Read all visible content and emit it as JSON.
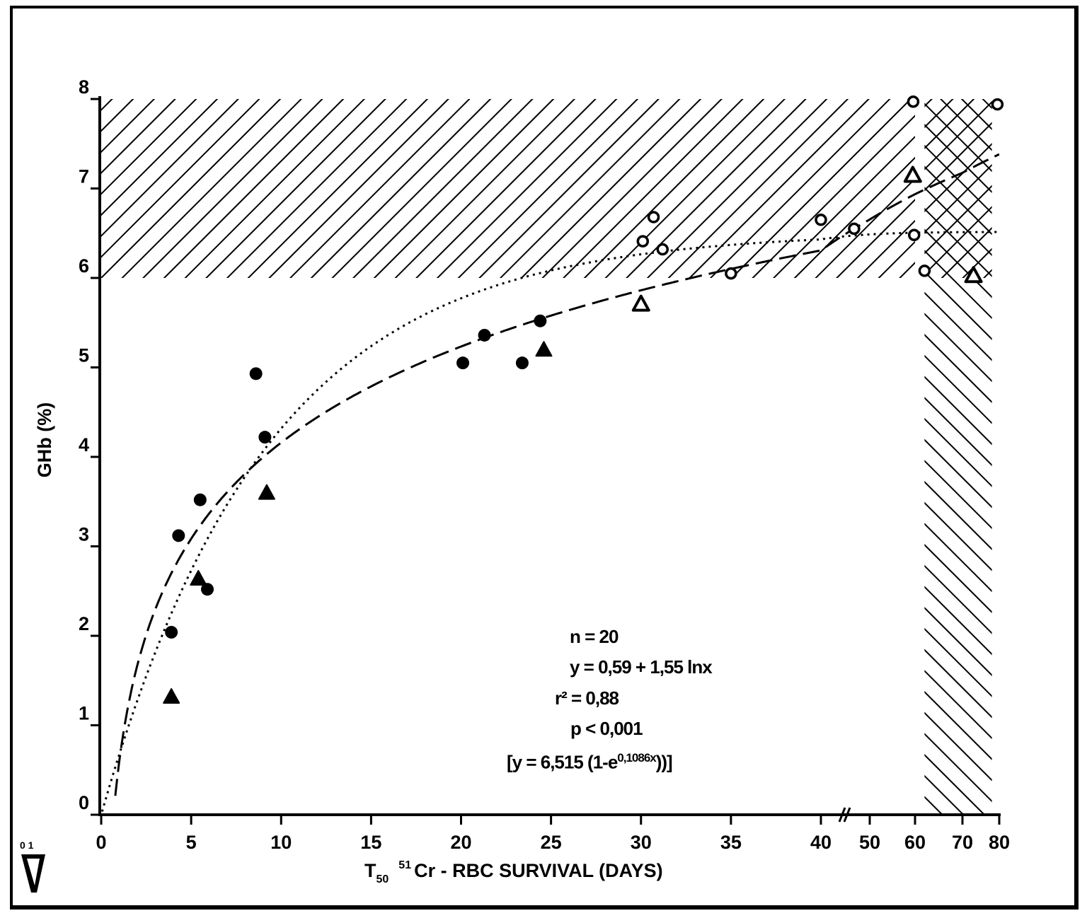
{
  "chart_data": {
    "type": "scatter",
    "title": "",
    "xlabel": "T50 51Cr - RBC SURVIVAL (DAYS)",
    "xlabel_parts": {
      "main": "T",
      "subscript": "50",
      "superscript": "51",
      "rest": "Cr - RBC SURVIVAL (DAYS)"
    },
    "ylabel": "GHb (%)",
    "xlim": [
      0,
      80
    ],
    "ylim": [
      0,
      8
    ],
    "x_axis_break": "between 40 and 50",
    "x_ticks": [
      0,
      5,
      10,
      15,
      20,
      25,
      30,
      35,
      40,
      50,
      60,
      70,
      80
    ],
    "y_ticks": [
      0,
      1,
      2,
      3,
      4,
      5,
      6,
      7,
      8
    ],
    "grid": false,
    "series": [
      {
        "name": "filled-circles",
        "marker": "filled-circle",
        "points": [
          [
            3.9,
            2.04
          ],
          [
            4.3,
            3.12
          ],
          [
            5.5,
            3.52
          ],
          [
            5.9,
            2.52
          ],
          [
            8.6,
            4.93
          ],
          [
            9.1,
            4.22
          ],
          [
            20.1,
            5.05
          ],
          [
            21.3,
            5.36
          ],
          [
            23.4,
            5.05
          ],
          [
            24.4,
            5.52
          ]
        ]
      },
      {
        "name": "filled-triangles",
        "marker": "filled-triangle",
        "points": [
          [
            3.9,
            1.32
          ],
          [
            5.4,
            2.64
          ],
          [
            9.2,
            3.6
          ],
          [
            24.6,
            5.2
          ]
        ]
      },
      {
        "name": "open-circles",
        "marker": "open-circle",
        "points": [
          [
            30.1,
            6.41
          ],
          [
            30.7,
            6.68
          ],
          [
            31.2,
            6.32
          ],
          [
            35,
            6.05
          ],
          [
            40,
            6.65
          ],
          [
            46.8,
            6.55
          ],
          [
            59.6,
            7.97
          ],
          [
            59.8,
            6.48
          ],
          [
            62,
            6.08
          ],
          [
            79.5,
            7.94
          ]
        ]
      },
      {
        "name": "open-triangles",
        "marker": "open-triangle",
        "points": [
          [
            30,
            5.71
          ],
          [
            59.5,
            7.15
          ],
          [
            73,
            6.03
          ]
        ]
      }
    ],
    "fits": [
      {
        "name": "log-fit",
        "style": "dashed",
        "a": 0.59,
        "b": 1.55
      },
      {
        "name": "exp-fit",
        "style": "dotted",
        "k": 6.515,
        "r": 0.1086
      }
    ],
    "regions": [
      {
        "name": "normal-ghb-band",
        "pattern": "diagonal",
        "x": [
          0,
          60
        ],
        "y": [
          6,
          8
        ]
      },
      {
        "name": "normal-overlap",
        "pattern": "crosshatch",
        "x": [
          62,
          78
        ],
        "y": [
          6,
          8
        ]
      },
      {
        "name": "normal-survival-band",
        "pattern": "back-diagonal",
        "x": [
          62,
          78
        ],
        "y": [
          0,
          6
        ]
      }
    ],
    "annotations": {
      "n": "n = 20",
      "equation": "y = 0,59 + 1,55 lnx",
      "r2": "r² = 0,88",
      "p": "p < 0,001",
      "exp_equation_prefix": "[y = 6,515 (1-e",
      "exp_equation_exponent": "0,1086x",
      "exp_equation_suffix": "))]"
    },
    "corner_mark": "0 1"
  }
}
